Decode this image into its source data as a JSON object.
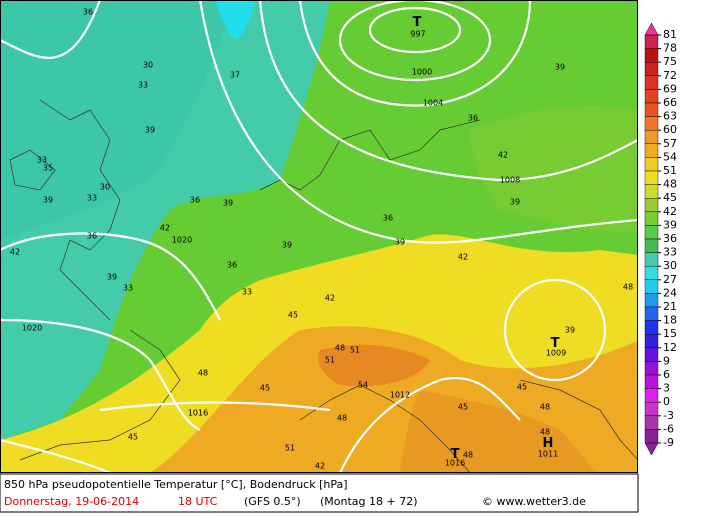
{
  "map": {
    "temperature_labels": [
      36,
      30,
      33,
      35,
      39,
      33,
      30,
      39,
      42,
      36,
      39,
      33,
      36,
      33,
      42,
      39,
      36,
      33,
      39,
      36,
      42,
      39,
      45,
      48,
      51,
      48,
      54,
      45,
      48,
      45,
      42,
      48,
      45,
      42,
      39,
      36,
      39,
      48,
      42,
      48,
      51,
      45,
      48,
      51,
      39,
      37
    ],
    "pressure_labels": [
      997,
      1000,
      1004,
      1008,
      1020,
      1020,
      1016,
      1012,
      1009,
      1011,
      1016
    ],
    "lows": [
      "T",
      "T",
      "T"
    ],
    "highs": [
      "H"
    ]
  },
  "legend": {
    "ticks": [
      81,
      78,
      75,
      72,
      69,
      66,
      63,
      60,
      57,
      54,
      51,
      48,
      45,
      42,
      39,
      36,
      33,
      30,
      27,
      24,
      21,
      18,
      15,
      12,
      9,
      6,
      3,
      0,
      -3,
      -6,
      -9
    ],
    "colors": [
      "#cc2255",
      "#bb1111",
      "#cc2222",
      "#dd3322",
      "#e04422",
      "#e85522",
      "#ee7722",
      "#f09922",
      "#eeaa22",
      "#eecc22",
      "#eedd22",
      "#ccdd22",
      "#99cc33",
      "#77cc33",
      "#55cc44",
      "#44bb55",
      "#44ccaa",
      "#33dddd",
      "#22ccee",
      "#2299ee",
      "#2266ee",
      "#2233ee",
      "#3322dd",
      "#6611dd",
      "#9911dd",
      "#bb11dd",
      "#dd22ee",
      "#cc33cc",
      "#aa33aa",
      "#882299"
    ]
  },
  "caption": {
    "line1": "850 hPa pseudopotentielle Temperatur [°C], Bodendruck [hPa]",
    "date": "Donnerstag, 19-06-2014",
    "time": "18 UTC",
    "model": "(GFS 0.5°)",
    "run": "(Montag 18 + 72)",
    "source": "© www.wetter3.de"
  }
}
